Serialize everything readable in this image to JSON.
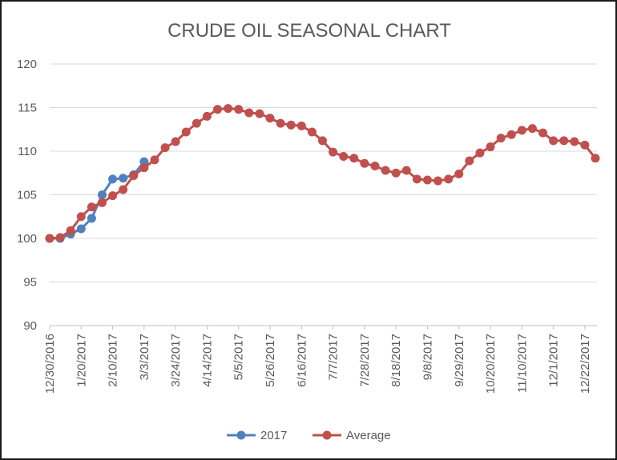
{
  "chart_data": {
    "type": "line",
    "title": "CRUDE OIL SEASONAL CHART",
    "xlabel": "",
    "ylabel": "",
    "ylim": [
      90,
      120
    ],
    "yticks": [
      90,
      95,
      100,
      105,
      110,
      115,
      120
    ],
    "x_tick_labels": [
      "12/30/2016",
      "1/20/2017",
      "2/10/2017",
      "3/3/2017",
      "3/24/2017",
      "4/14/2017",
      "5/5/2017",
      "5/26/2017",
      "6/16/2017",
      "7/7/2017",
      "7/28/2017",
      "8/18/2017",
      "9/8/2017",
      "9/29/2017",
      "10/20/2017",
      "11/10/2017",
      "12/1/2017",
      "12/22/2017"
    ],
    "grid": true,
    "legend": "bottom",
    "series": [
      {
        "name": "2017",
        "color": "#4f81bd",
        "values": [
          100,
          100,
          100.5,
          101.1,
          102.3,
          105,
          106.8,
          106.9,
          107.3,
          108.8
        ]
      },
      {
        "name": "Average",
        "color": "#c0504d",
        "values": [
          100,
          100.1,
          100.9,
          102.5,
          103.6,
          104.1,
          104.9,
          105.6,
          107.2,
          108.1,
          109,
          110.4,
          111.1,
          112.2,
          113.2,
          114,
          114.8,
          114.9,
          114.8,
          114.4,
          114.3,
          113.8,
          113.2,
          113,
          112.9,
          112.2,
          111.2,
          109.9,
          109.4,
          109.2,
          108.6,
          108.3,
          107.8,
          107.5,
          107.8,
          106.8,
          106.7,
          106.6,
          106.8,
          107.4,
          108.9,
          109.8,
          110.5,
          111.5,
          111.9,
          112.4,
          112.6,
          112.1,
          111.2,
          111.2,
          111.1,
          110.7,
          109.2
        ]
      }
    ]
  }
}
